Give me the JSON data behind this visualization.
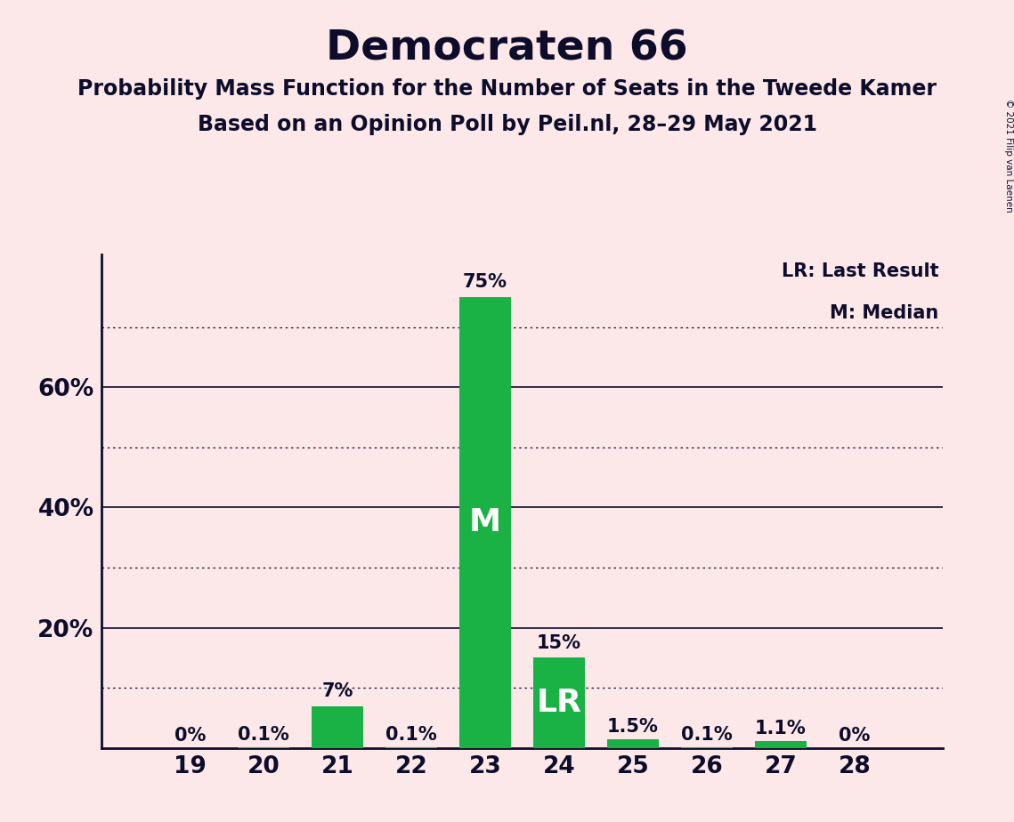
{
  "title": "Democraten 66",
  "subtitle1": "Probability Mass Function for the Number of Seats in the Tweede Kamer",
  "subtitle2": "Based on an Opinion Poll by Peil.nl, 28–29 May 2021",
  "copyright": "© 2021 Filip van Laenen",
  "seats": [
    19,
    20,
    21,
    22,
    23,
    24,
    25,
    26,
    27,
    28
  ],
  "probabilities": [
    0.0,
    0.1,
    7.0,
    0.1,
    75.0,
    15.0,
    1.5,
    0.1,
    1.1,
    0.0
  ],
  "labels": [
    "0%",
    "0.1%",
    "7%",
    "0.1%",
    "75%",
    "15%",
    "1.5%",
    "0.1%",
    "1.1%",
    "0%"
  ],
  "bar_labels": [
    null,
    null,
    null,
    null,
    "M",
    "LR",
    null,
    null,
    null,
    null
  ],
  "bar_color": "#1ab245",
  "background_color": "#fce8e8",
  "text_color": "#0d0d2b",
  "legend_lr": "LR: Last Result",
  "legend_m": "M: Median",
  "yticks_solid": [
    20,
    40,
    60
  ],
  "yticks_dotted": [
    10,
    30,
    50,
    70
  ],
  "ylim_max": 82,
  "title_fontsize": 34,
  "subtitle_fontsize": 17,
  "label_fontsize": 15,
  "bar_label_fontsize": 26,
  "tick_fontsize": 19,
  "legend_fontsize": 15
}
